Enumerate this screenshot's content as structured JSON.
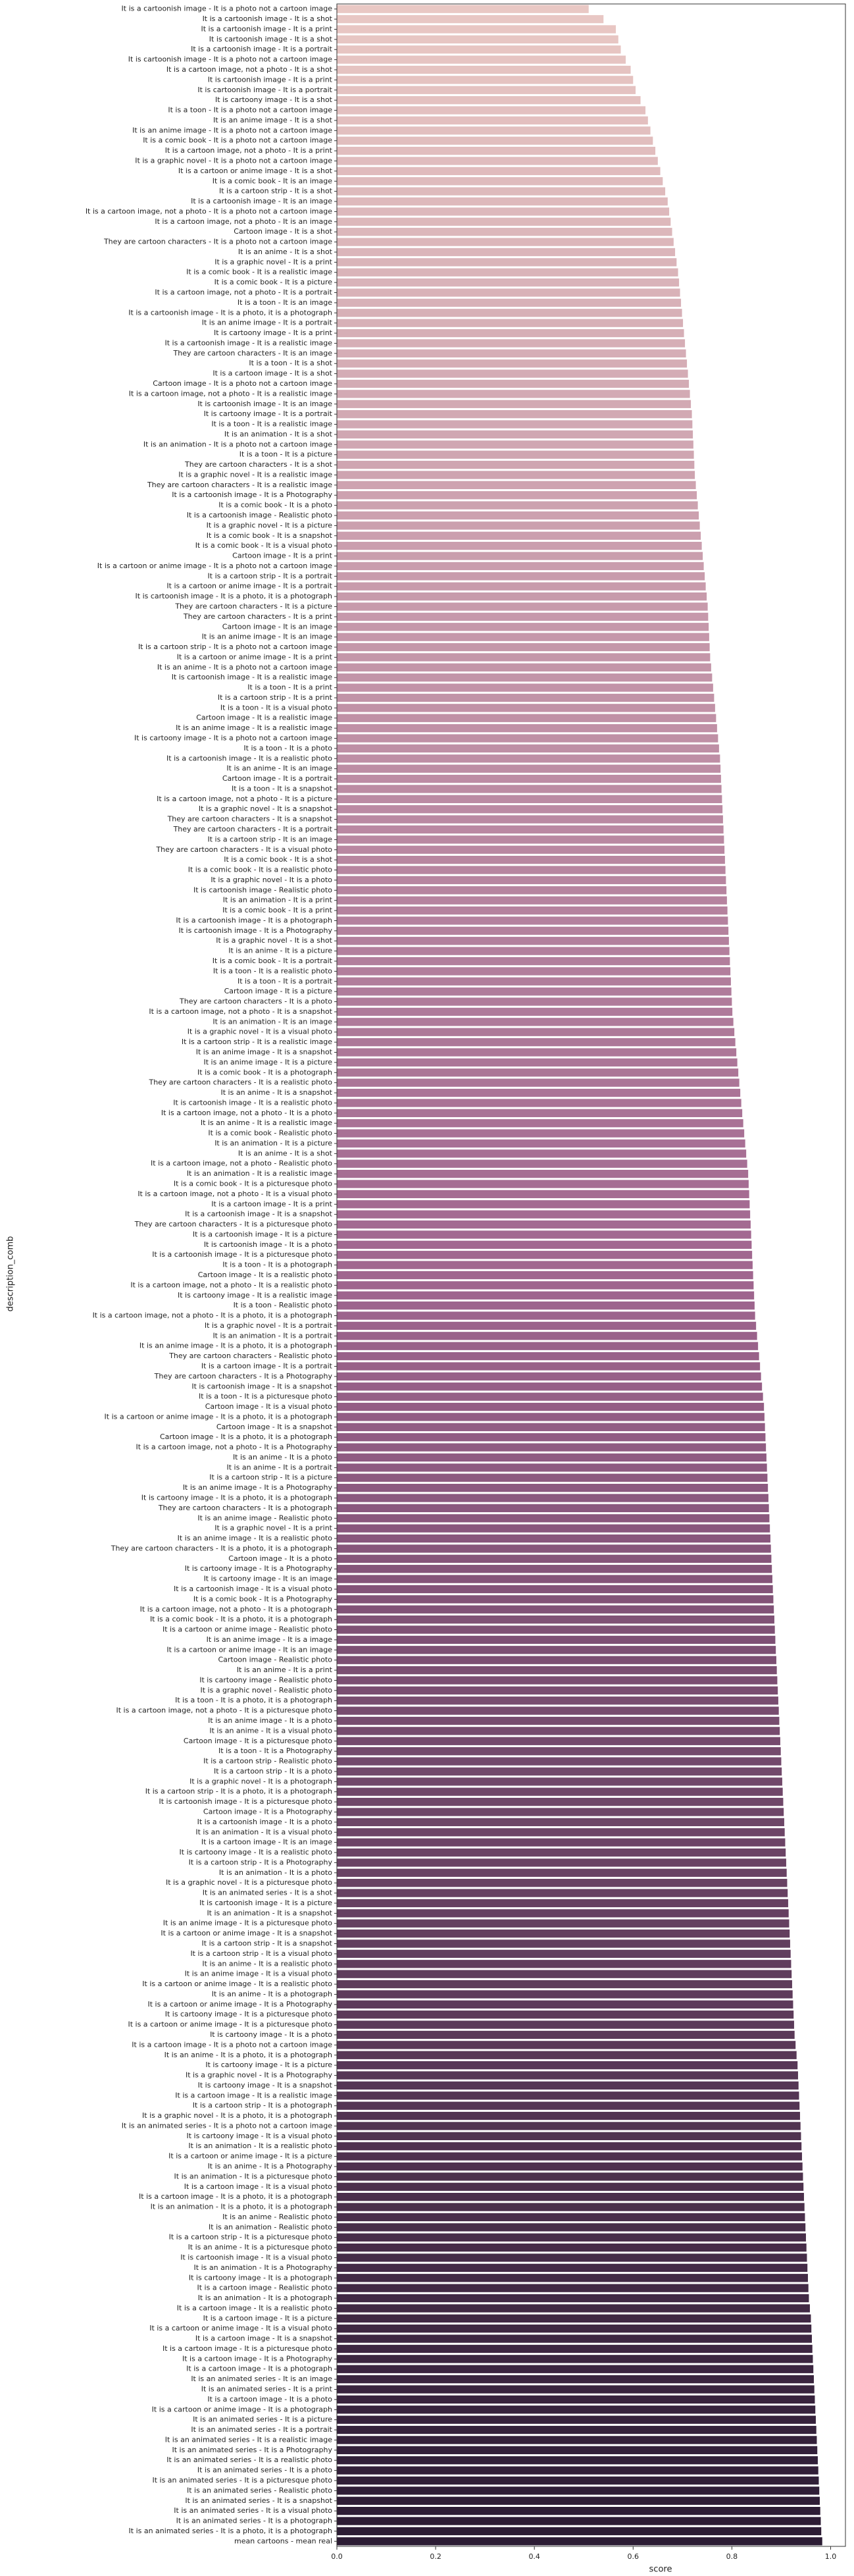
{
  "chart_data": {
    "type": "barh",
    "xlabel": "score",
    "ylabel": "description_comb",
    "categories": [
      "It is a cartoonish image - It is a photo not a cartoon image",
      "It is a cartoonish image - It is a shot",
      "It is a cartoonish image - It is a print",
      "It is cartoonish image - It is a shot",
      "It is a cartoonish image - It is a portrait",
      "It is cartoonish image - It is a photo not a cartoon image",
      "It is a cartoon image, not a photo - It is a shot",
      "It is cartoonish image - It is a print",
      "It is cartoonish image - It is a portrait",
      "It is cartoony image - It is a shot",
      "It is a toon - It is a photo not a cartoon image",
      "It is an anime image - It is a shot",
      "It is an anime image - It is a photo not a cartoon image",
      "It is a comic book - It is a photo not a cartoon image",
      "It is a cartoon image, not a photo - It is a print",
      "It is a graphic novel - It is a photo not a cartoon image",
      "It is a cartoon or anime image - It is a shot",
      "It is a comic book - It is an image",
      "It is a cartoon strip - It is a shot",
      "It is a cartoonish image - It is an image",
      "It is a cartoon image, not a photo - It is a photo not a cartoon image",
      "It is a cartoon image, not a photo - It is an image",
      "Cartoon image - It is a shot",
      "They are cartoon characters - It is a photo not a cartoon image",
      "It is an anime - It is a shot",
      "It is a graphic novel - It is a print",
      "It is a comic book - It is a realistic image",
      "It is a comic book - It is a picture",
      "It is a cartoon image, not a photo - It is a portrait",
      "It is a toon - It is an image",
      "It is a cartoonish image - It is a photo, it is a photograph",
      "It is an anime image - It is a portrait",
      "It is cartoony image - It is a print",
      "It is a cartoonish image - It is a realistic image",
      "They are cartoon characters - It is an image",
      "It is a toon - It is a shot",
      "It is a cartoon image - It is a shot",
      "Cartoon image - It is a photo not a cartoon image",
      "It is a cartoon image, not a photo - It is a realistic image",
      "It is cartoonish image - It is an image",
      "It is cartoony image - It is a portrait",
      "It is a toon - It is a realistic image",
      "It is an animation - It is a shot",
      "It is an animation - It is a photo not a cartoon image",
      "It is a toon - It is a picture",
      "They are cartoon characters - It is a shot",
      "It is a graphic novel - It is a realistic image",
      "They are cartoon characters - It is a realistic image",
      "It is a cartoonish image - It is a Photography",
      "It is a comic book - It is a photo",
      "It is a cartoonish image - Realistic photo",
      "It is a graphic novel - It is a picture",
      "It is a comic book - It is a snapshot",
      "It is a comic book - It is a visual photo",
      "Cartoon image - It is a print",
      "It is a cartoon or anime image - It is a photo not a cartoon image",
      "It is a cartoon strip - It is a portrait",
      "It is a cartoon or anime image - It is a portrait",
      "It is cartoonish image - It is a photo, it is a photograph",
      "They are cartoon characters - It is a picture",
      "They are cartoon characters - It is a print",
      "Cartoon image - It is an image",
      "It is an anime image - It is an image",
      "It is a cartoon strip - It is a photo not a cartoon image",
      "It is a cartoon or anime image - It is a print",
      "It is an anime - It is a photo not a cartoon image",
      "It is cartoonish image - It is a realistic image",
      "It is a toon - It is a print",
      "It is a cartoon strip - It is a print",
      "It is a toon - It is a visual photo",
      "Cartoon image - It is a realistic image",
      "It is an anime image - It is a realistic image",
      "It is cartoony image - It is a photo not a cartoon image",
      "It is a toon - It is a photo",
      "It is a cartoonish image - It is a realistic photo",
      "It is an anime - It is an image",
      "Cartoon image - It is a portrait",
      "It is a toon - It is a snapshot",
      "It is a cartoon image, not a photo - It is a picture",
      "It is a graphic novel - It is a snapshot",
      "They are cartoon characters - It is a snapshot",
      "They are cartoon characters - It is a portrait",
      "It is a cartoon strip - It is an image",
      "They are cartoon characters - It is a visual photo",
      "It is a comic book - It is a shot",
      "It is a comic book - It is a realistic photo",
      "It is a graphic novel - It is a photo",
      "It is cartoonish image - Realistic photo",
      "It is an animation - It is a print",
      "It is a comic book - It is a print",
      "It is a cartoonish image - It is a photograph",
      "It is cartoonish image - It is a Photography",
      "It is a graphic novel - It is a shot",
      "It is an anime - It is a picture",
      "It is a comic book - It is a portrait",
      "It is a toon - It is a realistic photo",
      "It is a toon - It is a portrait",
      "Cartoon image - It is a picture",
      "They are cartoon characters - It is a photo",
      "It is a cartoon image, not a photo - It is a snapshot",
      "It is an animation - It is an image",
      "It is a graphic novel - It is a visual photo",
      "It is a cartoon strip - It is a realistic image",
      "It is an anime image - It is a snapshot",
      "It is an anime image - It is a picture",
      "It is a comic book - It is a photograph",
      "They are cartoon characters - It is a realistic photo",
      "It is an anime - It is a snapshot",
      "It is cartoonish image - It is a realistic photo",
      "It is a cartoon image, not a photo - It is a photo",
      "It is an anime - It is a realistic image",
      "It is a comic book - Realistic photo",
      "It is an animation - It is a picture",
      "It is an anime - It is a shot",
      "It is a cartoon image, not a photo - Realistic photo",
      "It is an animation - It is a realistic image",
      "It is a comic book - It is a picturesque photo",
      "It is a cartoon image, not a photo - It is a visual photo",
      "It is a cartoon image - It is a print",
      "It is a cartoonish image - It is a snapshot",
      "They are cartoon characters - It is a picturesque photo",
      "It is a cartoonish image - It is a picture",
      "It is cartoonish image - It is a photo",
      "It is a cartoonish image - It is a picturesque photo",
      "It is a toon - It is a photograph",
      "Cartoon image - It is a realistic photo",
      "It is a cartoon image, not a photo - It is a realistic photo",
      "It is cartoony image - It is a realistic image",
      "It is a toon - Realistic photo",
      "It is a cartoon image, not a photo - It is a photo, it is a photograph",
      "It is a graphic novel - It is a portrait",
      "It is an animation - It is a portrait",
      "It is an anime image - It is a photo, it is a photograph",
      "They are cartoon characters - Realistic photo",
      "It is a cartoon image - It is a portrait",
      "They are cartoon characters - It is a Photography",
      "It is cartoonish image - It is a snapshot",
      "It is a toon - It is a picturesque photo",
      "Cartoon image - It is a visual photo",
      "It is a cartoon or anime image - It is a photo, it is a photograph",
      "Cartoon image - It is a snapshot",
      "Cartoon image - It is a photo, it is a photograph",
      "It is a cartoon image, not a photo - It is a Photography",
      "It is an anime - It is a photo",
      "It is an anime - It is a portrait",
      "It is a cartoon strip - It is a picture",
      "It is an anime image - It is a Photography",
      "It is cartoony image - It is a photo, it is a photograph",
      "They are cartoon characters - It is a photograph",
      "It is an anime image - Realistic photo",
      "It is a graphic novel - It is a print",
      "It is an anime image - It is a realistic photo",
      "They are cartoon characters - It is a photo, it is a photograph",
      "Cartoon image - It is a photo",
      "It is cartoony image - It is a Photography",
      "It is cartoony image - It is an image",
      "It is a cartoonish image - It is a visual photo",
      "It is a comic book - It is a Photography",
      "It is a cartoon image, not a photo - It is a photograph",
      "It is a comic book - It is a photo, it is a photograph",
      "It is a cartoon or anime image - Realistic photo",
      "It is an anime image - It is a image",
      "It is a cartoon or anime image - It is an image",
      "Cartoon image - Realistic photo",
      "It is an anime - It is a print",
      "It is cartoony image - Realistic photo",
      "It is a graphic novel - Realistic photo",
      "It is a toon - It is a photo, it is a photograph",
      "It is a cartoon image, not a photo - It is a picturesque photo",
      "It is an anime image - It is a photo",
      "It is an anime - It is a visual photo",
      "Cartoon image - It is a picturesque photo",
      "It is a toon - It is a Photography",
      "It is a cartoon strip - Realistic photo",
      "It is a cartoon strip - It is a photo",
      "It is a graphic novel - It is a photograph",
      "It is a cartoon strip - It is a photo, it is a photograph",
      "It is cartoonish image - It is a picturesque photo",
      "Cartoon image - It is a Photography",
      "It is a cartoonish image - It is a photo",
      "It is an animation - It is a visual photo",
      "It is a cartoon image - It is an image",
      "It is cartoony image - It is a realistic photo",
      "It is a cartoon strip - It is a Photography",
      "It is an animation - It is a photo",
      "It is a graphic novel - It is a picturesque photo",
      "It is an animated series - It is a shot",
      "It is cartoonish image - It is a picture",
      "It is an animation - It is a snapshot",
      "It is an anime image - It is a picturesque photo",
      "It is a cartoon or anime image - It is a snapshot",
      "It is a cartoon strip - It is a snapshot",
      "It is a cartoon strip - It is a visual photo",
      "It is an anime - It is a realistic photo",
      "It is an anime image - It is a visual photo",
      "It is a cartoon or anime image - It is a realistic photo",
      "It is an anime - It is a photograph",
      "It is a cartoon or anime image - It is a Photography",
      "It is cartoony image - It is a picturesque photo",
      "It is a cartoon or anime image - It is a picturesque photo",
      "It is cartoony image - It is a photo",
      "It is a cartoon image - It is a photo not a cartoon image",
      "It is an anime - It is a photo, it is a photograph",
      "It is cartoony image - It is a picture",
      "It is a graphic novel - It is a Photography",
      "It is cartoony image - It is a snapshot",
      "It is a cartoon image - It is a realistic image",
      "It is a cartoon strip - It is a photograph",
      "It is a graphic novel - It is a photo, it is a photograph",
      "It is an animated series - It is a photo not a cartoon image",
      "It is cartoony image - It is a visual photo",
      "It is an animation - It is a realistic photo",
      "It is a cartoon or anime image - It is a picture",
      "It is an anime - It is a Photography",
      "It is an animation - It is a picturesque photo",
      "It is a cartoon image - It is a visual photo",
      "It is a cartoon image - It is a photo, it is a photograph",
      "It is an animation - It is a photo, it is a photograph",
      "It is an anime - Realistic photo",
      "It is an animation - Realistic photo",
      "It is a cartoon strip - It is a picturesque photo",
      "It is an anime - It is a picturesque photo",
      "It is cartoonish image - It is a visual photo",
      "It is an animation - It is a Photography",
      "It is cartoony image - It is a photograph",
      "It is a cartoon image - Realistic photo",
      "It is an animation - It is a photograph",
      "It is a cartoon image - It is a realistic photo",
      "It is a cartoon image - It is a picture",
      "It is a cartoon or anime image - It is a visual photo",
      "It is a cartoon image - It is a snapshot",
      "It is a cartoon image - It is a picturesque photo",
      "It is a cartoon image - It is a Photography",
      "It is a cartoon image - It is a photograph",
      "It is an animated series - It is an image",
      "It is an animated series - It is a print",
      "It is a cartoon image - It is a photo",
      "It is a cartoon or anime image - It is a photograph",
      "It is an animated series - It is a picture",
      "It is an animated series - It is a portrait",
      "It is an animated series - It is a realistic image",
      "It is an animated series - It is a Photography",
      "It is an animated series - It is a realistic photo",
      "It is an animated series - It is a photo",
      "It is an animated series - It is a picturesque photo",
      "It is an animated series - Realistic photo",
      "It is an animated series - It is a snapshot",
      "It is an animated series - It is a visual photo",
      "It is an animated series - It is a photograph",
      "It is an animated series - It is a photo, it is a photograph",
      "mean cartoons - mean real"
    ],
    "values": [
      0.51,
      0.54,
      0.565,
      0.57,
      0.575,
      0.585,
      0.595,
      0.6,
      0.605,
      0.615,
      0.625,
      0.63,
      0.635,
      0.64,
      0.645,
      0.65,
      0.655,
      0.66,
      0.665,
      0.67,
      0.673,
      0.676,
      0.679,
      0.682,
      0.685,
      0.688,
      0.691,
      0.693,
      0.695,
      0.697,
      0.699,
      0.701,
      0.703,
      0.705,
      0.707,
      0.709,
      0.711,
      0.713,
      0.715,
      0.717,
      0.719,
      0.72,
      0.721,
      0.722,
      0.723,
      0.724,
      0.725,
      0.727,
      0.729,
      0.731,
      0.733,
      0.735,
      0.737,
      0.739,
      0.741,
      0.743,
      0.745,
      0.747,
      0.749,
      0.751,
      0.752,
      0.753,
      0.754,
      0.755,
      0.756,
      0.758,
      0.76,
      0.762,
      0.764,
      0.766,
      0.768,
      0.77,
      0.772,
      0.774,
      0.776,
      0.777,
      0.778,
      0.779,
      0.78,
      0.781,
      0.782,
      0.783,
      0.784,
      0.785,
      0.786,
      0.787,
      0.788,
      0.789,
      0.79,
      0.791,
      0.792,
      0.793,
      0.794,
      0.795,
      0.796,
      0.797,
      0.798,
      0.799,
      0.8,
      0.801,
      0.803,
      0.805,
      0.807,
      0.809,
      0.811,
      0.813,
      0.815,
      0.817,
      0.819,
      0.821,
      0.823,
      0.825,
      0.827,
      0.829,
      0.831,
      0.833,
      0.834,
      0.835,
      0.836,
      0.837,
      0.838,
      0.839,
      0.84,
      0.841,
      0.842,
      0.843,
      0.844,
      0.845,
      0.846,
      0.847,
      0.849,
      0.851,
      0.853,
      0.855,
      0.857,
      0.859,
      0.861,
      0.863,
      0.865,
      0.866,
      0.867,
      0.868,
      0.869,
      0.87,
      0.871,
      0.872,
      0.873,
      0.874,
      0.875,
      0.876,
      0.877,
      0.878,
      0.879,
      0.88,
      0.881,
      0.882,
      0.883,
      0.884,
      0.885,
      0.886,
      0.887,
      0.888,
      0.889,
      0.89,
      0.891,
      0.892,
      0.893,
      0.894,
      0.895,
      0.896,
      0.897,
      0.898,
      0.899,
      0.9,
      0.901,
      0.902,
      0.903,
      0.904,
      0.905,
      0.906,
      0.907,
      0.908,
      0.909,
      0.91,
      0.911,
      0.912,
      0.913,
      0.914,
      0.915,
      0.916,
      0.917,
      0.918,
      0.919,
      0.92,
      0.921,
      0.922,
      0.923,
      0.924,
      0.925,
      0.926,
      0.927,
      0.929,
      0.931,
      0.933,
      0.934,
      0.935,
      0.936,
      0.937,
      0.938,
      0.939,
      0.94,
      0.941,
      0.942,
      0.943,
      0.944,
      0.945,
      0.946,
      0.947,
      0.948,
      0.949,
      0.95,
      0.951,
      0.952,
      0.953,
      0.954,
      0.955,
      0.956,
      0.958,
      0.96,
      0.961,
      0.962,
      0.963,
      0.964,
      0.965,
      0.966,
      0.967,
      0.968,
      0.969,
      0.97,
      0.971,
      0.972,
      0.973,
      0.974,
      0.975,
      0.976,
      0.977,
      0.978,
      0.979,
      0.98,
      0.981,
      0.983
    ],
    "xlim": [
      0,
      1.03
    ],
    "xticks": [
      {
        "value": 0,
        "label": "0.0"
      },
      0.2,
      0.4,
      0.6,
      0.8,
      {
        "value": 1,
        "label": "1.0"
      }
    ],
    "palette": [
      "#e9c8c4",
      "#a0668f",
      "#2b1b33"
    ]
  }
}
